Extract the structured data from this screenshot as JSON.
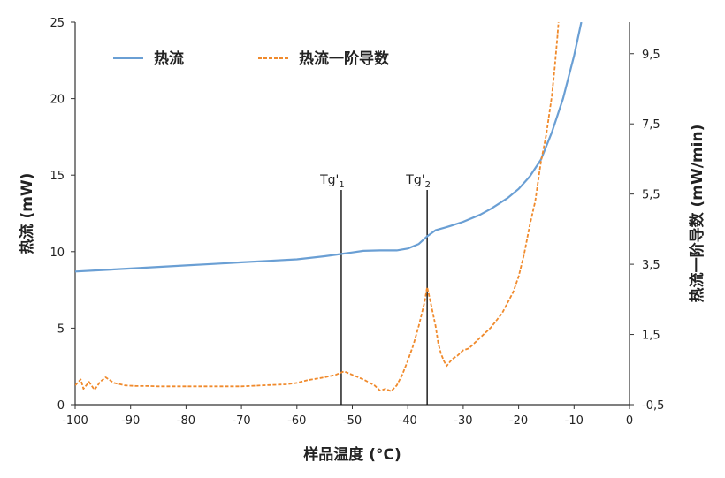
{
  "chart_data": {
    "type": "line",
    "xlabel": "样品温度 (°C)",
    "ylabel_left": "热流 (mW)",
    "ylabel_right": "热流一阶导数 (mW/min)",
    "xlim": [
      -100,
      0
    ],
    "ylim_left": [
      0,
      25
    ],
    "ylim_right": [
      -0.5,
      10.4
    ],
    "x_ticks": [
      "-100",
      "-90",
      "-80",
      "-70",
      "-60",
      "-50",
      "-40",
      "-30",
      "-20",
      "-10",
      "0"
    ],
    "y_left_ticks": [
      "0",
      "5",
      "10",
      "15",
      "20",
      "25"
    ],
    "y_right_ticks": [
      "-0,5",
      "1,5",
      "3,5",
      "5,5",
      "7,5",
      "9,5"
    ],
    "legend_placement": "top-left",
    "grid": false,
    "colors": {
      "heat_flow": "#6a9fd4",
      "derivative": "#f08a2c",
      "axis": "#333333"
    },
    "series": [
      {
        "name": "热流",
        "axis": "left",
        "style": "solid",
        "x": [
          -100,
          -95,
          -90,
          -85,
          -80,
          -75,
          -70,
          -65,
          -60,
          -55,
          -52,
          -50,
          -48,
          -45,
          -42,
          -40,
          -38,
          -36.5,
          -35,
          -33,
          -30,
          -27,
          -25,
          -22,
          -20,
          -18,
          -16,
          -14,
          -12,
          -10,
          -8.7
        ],
        "values": [
          8.7,
          8.8,
          8.9,
          9.0,
          9.1,
          9.2,
          9.3,
          9.4,
          9.5,
          9.7,
          9.85,
          9.95,
          10.05,
          10.08,
          10.08,
          10.2,
          10.5,
          11.0,
          11.4,
          11.6,
          11.95,
          12.4,
          12.8,
          13.5,
          14.1,
          14.9,
          16.0,
          17.8,
          20.0,
          22.8,
          25.0
        ]
      },
      {
        "name": "热流一阶导数",
        "axis": "right",
        "style": "dashed",
        "x": [
          -100,
          -99,
          -98.5,
          -97.5,
          -96.5,
          -95.5,
          -94.5,
          -93,
          -91,
          -89,
          -87,
          -85,
          -80,
          -75,
          -70,
          -65,
          -62,
          -60,
          -58,
          -55,
          -53,
          -51.5,
          -50,
          -48,
          -46,
          -45,
          -44,
          -43,
          -42,
          -41,
          -40,
          -39,
          -38,
          -37,
          -36.5,
          -36,
          -35,
          -34.5,
          -34,
          -33.5,
          -33,
          -32,
          -31,
          -30,
          -29,
          -27,
          -25,
          -23,
          -21,
          -20,
          -19,
          -18,
          -17,
          -16,
          -15,
          -14,
          -13.5,
          -13,
          -12.8
        ],
        "values": [
          0.05,
          0.22,
          -0.05,
          0.15,
          -0.08,
          0.15,
          0.28,
          0.12,
          0.05,
          0.03,
          0.03,
          0.02,
          0.02,
          0.02,
          0.02,
          0.06,
          0.08,
          0.12,
          0.2,
          0.28,
          0.35,
          0.45,
          0.35,
          0.22,
          0.05,
          -0.1,
          -0.05,
          -0.12,
          0.05,
          0.35,
          0.75,
          1.2,
          1.75,
          2.4,
          2.85,
          2.5,
          1.75,
          1.25,
          0.95,
          0.75,
          0.6,
          0.8,
          0.9,
          1.05,
          1.1,
          1.4,
          1.7,
          2.1,
          2.7,
          3.15,
          3.8,
          4.6,
          5.3,
          6.4,
          7.2,
          8.3,
          9.1,
          10.0,
          10.4
        ]
      }
    ],
    "reference_lines": [
      {
        "label_base": "Tg'",
        "label_sub": "1",
        "x": -52
      },
      {
        "label_base": "Tg'",
        "label_sub": "2",
        "x": -36.5
      }
    ]
  }
}
